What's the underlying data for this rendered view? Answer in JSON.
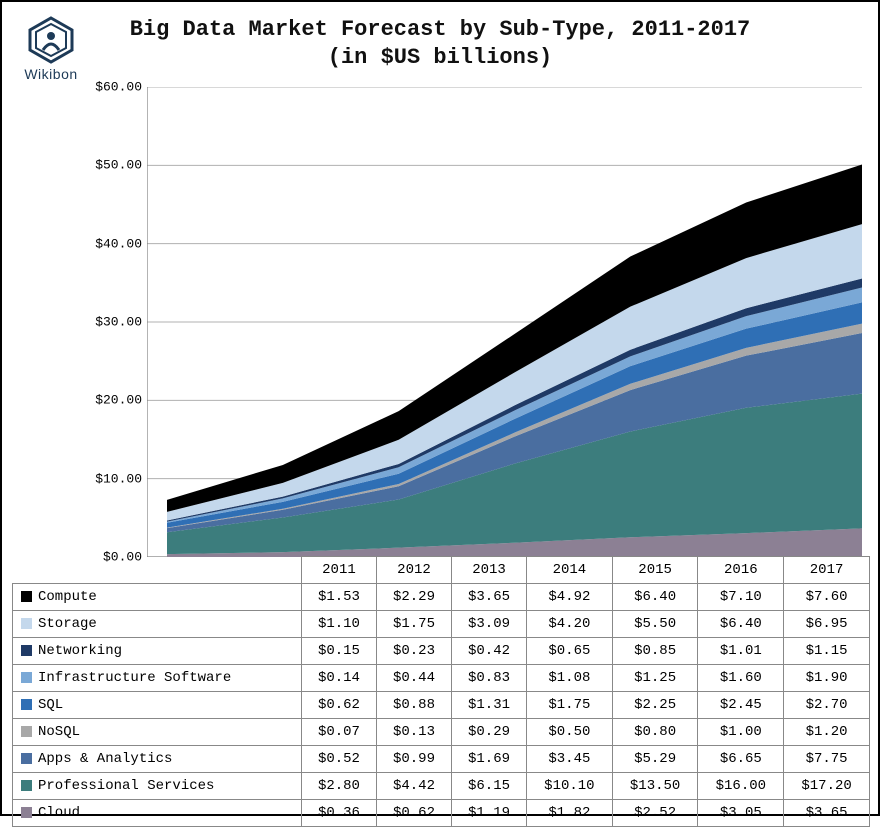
{
  "brand": "Wikibon",
  "logo_color": "#1d3a57",
  "title_line1": "Big Data Market Forecast by Sub-Type, 2011-2017",
  "title_line2": "(in $US billions)",
  "chart": {
    "type": "area-stacked",
    "years": [
      "2011",
      "2012",
      "2013",
      "2014",
      "2015",
      "2016",
      "2017"
    ],
    "ylim": [
      0,
      60
    ],
    "ytick_step": 10,
    "yticks": [
      "$0.00",
      "$10.00",
      "$20.00",
      "$30.00",
      "$40.00",
      "$50.00",
      "$60.00"
    ],
    "grid_color": "#b0b0b0",
    "axis_color": "#808080",
    "background": "#ffffff",
    "title_fontsize": 22,
    "tick_fontsize": 13,
    "table_fontsize": 14,
    "font_family": "Courier New",
    "series": [
      {
        "name": "Compute",
        "color": "#000000",
        "values": [
          1.53,
          2.29,
          3.65,
          4.92,
          6.4,
          7.1,
          7.6
        ]
      },
      {
        "name": "Storage",
        "color": "#c4d8ec",
        "values": [
          1.1,
          1.75,
          3.09,
          4.2,
          5.5,
          6.4,
          6.95
        ]
      },
      {
        "name": "Networking",
        "color": "#1f3a66",
        "values": [
          0.15,
          0.23,
          0.42,
          0.65,
          0.85,
          1.01,
          1.15
        ]
      },
      {
        "name": "Infrastructure Software",
        "color": "#7aa8d6",
        "values": [
          0.14,
          0.44,
          0.83,
          1.08,
          1.25,
          1.6,
          1.9
        ]
      },
      {
        "name": "SQL",
        "color": "#2f6fb5",
        "values": [
          0.62,
          0.88,
          1.31,
          1.75,
          2.25,
          2.45,
          2.7
        ]
      },
      {
        "name": "NoSQL",
        "color": "#a8a8a8",
        "values": [
          0.07,
          0.13,
          0.29,
          0.5,
          0.8,
          1.0,
          1.2
        ]
      },
      {
        "name": "Apps & Analytics",
        "color": "#4a6ea0",
        "values": [
          0.52,
          0.99,
          1.69,
          3.45,
          5.29,
          6.65,
          7.75
        ]
      },
      {
        "name": "Professional Services",
        "color": "#3c7d7d",
        "values": [
          2.8,
          4.42,
          6.15,
          10.1,
          13.5,
          16.0,
          17.2
        ]
      },
      {
        "name": "Cloud",
        "color": "#8c8094",
        "values": [
          0.36,
          0.62,
          1.19,
          1.82,
          2.52,
          3.05,
          3.65
        ]
      }
    ],
    "currencies_prefix": "$"
  }
}
